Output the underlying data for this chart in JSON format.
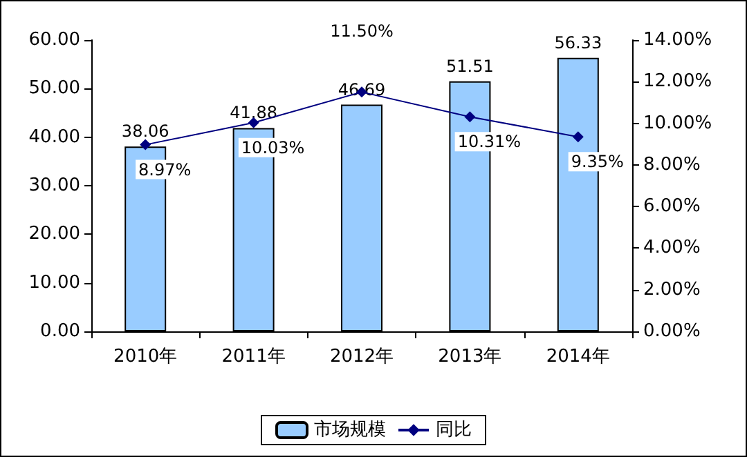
{
  "chart_data": {
    "type": "bar",
    "categories": [
      "2010年",
      "2011年",
      "2012年",
      "2013年",
      "2014年"
    ],
    "series": [
      {
        "name": "市场规模",
        "type": "bar",
        "color": "#99ccff",
        "values": [
          38.06,
          41.88,
          46.69,
          51.51,
          56.33
        ],
        "value_labels": [
          "38.06",
          "41.88",
          "46.69",
          "51.51",
          "56.33"
        ]
      },
      {
        "name": "同比",
        "type": "line",
        "axis": "y2",
        "color": "#000080",
        "marker": "diamond",
        "values": [
          8.97,
          10.03,
          11.5,
          10.31,
          9.35
        ],
        "value_labels": [
          "8.97%",
          "10.03%",
          "11.50%",
          "10.31%",
          "9.35%"
        ]
      }
    ],
    "ylim": [
      0,
      60
    ],
    "yticks": [
      {
        "value": 0,
        "label": "0.00"
      },
      {
        "value": 10,
        "label": "10.00"
      },
      {
        "value": 20,
        "label": "20.00"
      },
      {
        "value": 30,
        "label": "30.00"
      },
      {
        "value": 40,
        "label": "40.00"
      },
      {
        "value": 50,
        "label": "50.00"
      },
      {
        "value": 60,
        "label": "60.00"
      }
    ],
    "y2lim": [
      0,
      14
    ],
    "y2ticks": [
      {
        "value": 0,
        "label": "0.00%"
      },
      {
        "value": 2,
        "label": "2.00%"
      },
      {
        "value": 4,
        "label": "4.00%"
      },
      {
        "value": 6,
        "label": "6.00%"
      },
      {
        "value": 8,
        "label": "8.00%"
      },
      {
        "value": 10,
        "label": "10.00%"
      },
      {
        "value": 12,
        "label": "12.00%"
      },
      {
        "value": 14,
        "label": "14.00%"
      }
    ],
    "grid": false,
    "legend": "bottom"
  }
}
